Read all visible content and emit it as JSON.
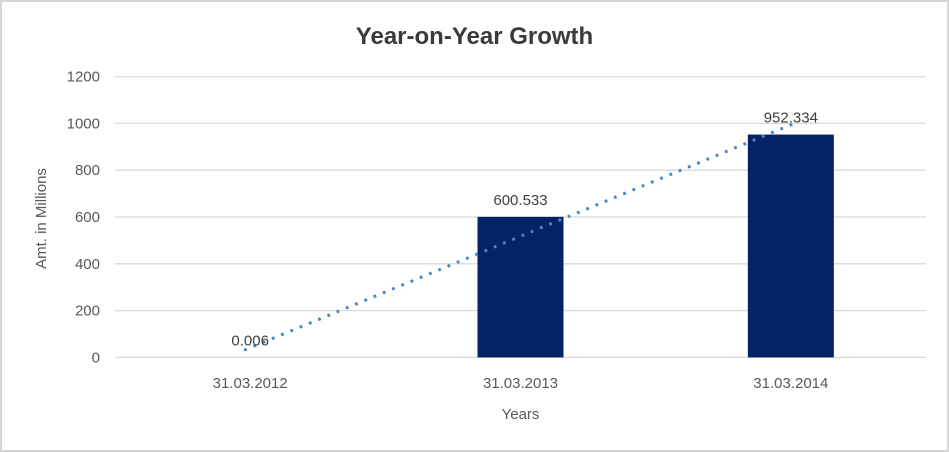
{
  "chart_data": {
    "type": "bar",
    "title": "Year-on-Year Growth",
    "categories": [
      "31.03.2012",
      "31.03.2013",
      "31.03.2014"
    ],
    "values": [
      0.006,
      600.533,
      952.334
    ],
    "data_labels": [
      "0.006",
      "600.533",
      "952.334"
    ],
    "xlabel": "Years",
    "ylabel": "Amt. in Millions",
    "ylim": [
      0,
      1200
    ],
    "yticks": [
      0,
      200,
      400,
      600,
      800,
      1000,
      1200
    ],
    "grid": true,
    "legend_position": "none",
    "bar_color": "#052266",
    "trendline": {
      "type": "linear",
      "style": "dotted",
      "color": "#4A86C8"
    },
    "colors": {
      "background": "#FFFFFF",
      "frame_border": "#D5D5D5",
      "gridline": "#D9D9D9",
      "axis_line": "#D9D9D9",
      "tick_text": "#595959",
      "data_label_text": "#404040",
      "title_text": "#3A3A3A"
    }
  }
}
